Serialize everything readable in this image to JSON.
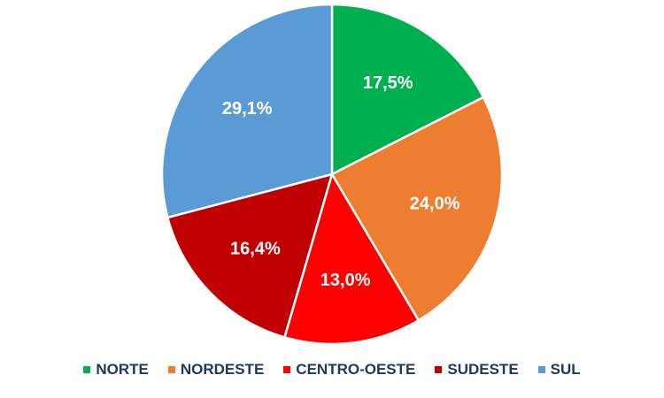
{
  "chart_data": {
    "type": "pie",
    "title": "",
    "categories": [
      "NORTE",
      "NORDESTE",
      "CENTRO-OESTE",
      "SUDESTE",
      "SUL"
    ],
    "values": [
      17.5,
      24.0,
      13.0,
      16.4,
      29.1
    ],
    "labels": [
      "17,5%",
      "24,0%",
      "13,0%",
      "16,4%",
      "29,1%"
    ],
    "colors": [
      "#00b050",
      "#ed7d31",
      "#ff0000",
      "#c00000",
      "#5b9bd5"
    ],
    "start_angle_deg": 0,
    "direction": "clockwise",
    "legend_position": "bottom"
  }
}
